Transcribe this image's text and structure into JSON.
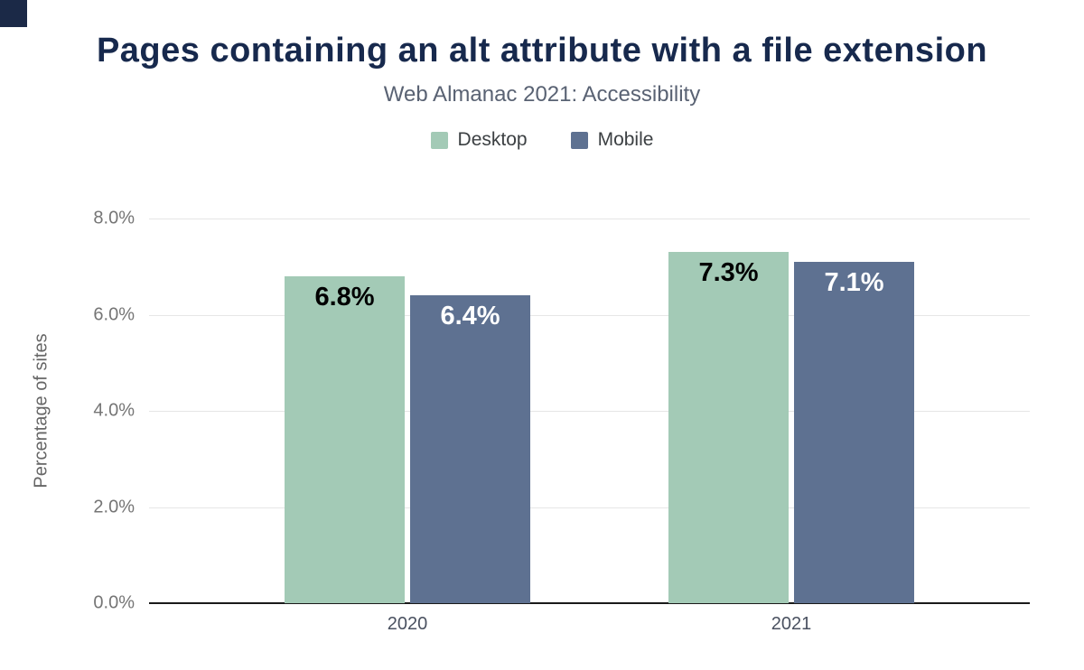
{
  "corner_mark": {
    "color": "#1b2947"
  },
  "chart_data": {
    "type": "bar",
    "title": "Pages containing an alt attribute with a file extension",
    "subtitle": "Web Almanac 2021: Accessibility",
    "ylabel": "Percentage of sites",
    "xlabel": "",
    "categories": [
      "2020",
      "2021"
    ],
    "series": [
      {
        "name": "Desktop",
        "color": "#a3cab6",
        "label_color": "#000000",
        "values": [
          6.8,
          7.3
        ],
        "data_labels": [
          "6.8%",
          "7.3%"
        ]
      },
      {
        "name": "Mobile",
        "color": "#5e7191",
        "label_color": "#ffffff",
        "values": [
          6.4,
          7.1
        ],
        "data_labels": [
          "6.4%",
          "7.1%"
        ]
      }
    ],
    "ylim": [
      0,
      8
    ],
    "yticks": [
      0,
      2,
      4,
      6,
      8
    ],
    "ytick_labels": [
      "0.0%",
      "2.0%",
      "4.0%",
      "6.0%",
      "8.0%"
    ],
    "grid": true,
    "legend_position": "top"
  }
}
